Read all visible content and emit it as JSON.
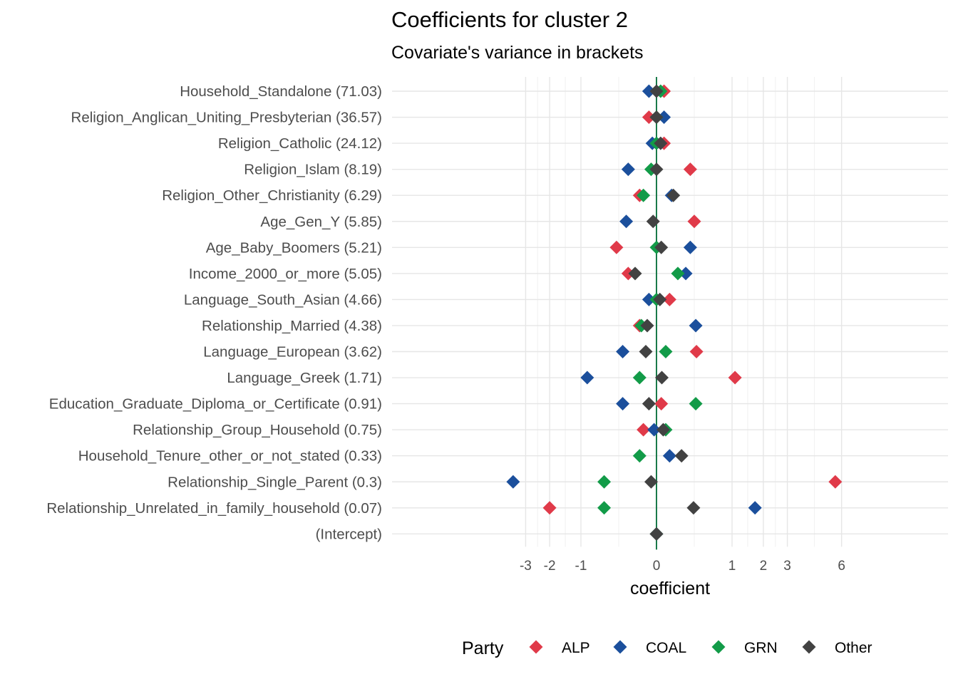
{
  "chart_data": {
    "type": "scatter",
    "title": "Coefficients for cluster 2",
    "subtitle": "Covariate's variance in brackets",
    "xlabel": "coefficient",
    "ylabel": "",
    "x_scale": "signed-sqrt",
    "xlim": [
      -3.8,
      6.1
    ],
    "x_ticks": [
      -3,
      -2,
      -1,
      0,
      1,
      2,
      3,
      6
    ],
    "x_tick_labels": [
      "-3",
      "-2",
      "-1",
      "0",
      "1",
      "2",
      "3",
      "6"
    ],
    "reference_line": {
      "x": 0,
      "color": "#1a7a4a"
    },
    "grid": true,
    "legend": {
      "title": "Party",
      "position": "bottom"
    },
    "categories": [
      "Household_Standalone (71.03)",
      "Religion_Anglican_Uniting_Presbyterian (36.57)",
      "Religion_Catholic (24.12)",
      "Religion_Islam (8.19)",
      "Religion_Other_Christianity (6.29)",
      "Age_Gen_Y (5.85)",
      "Age_Baby_Boomers (5.21)",
      "Income_2000_or_more (5.05)",
      "Language_South_Asian (4.66)",
      "Relationship_Married (4.38)",
      "Language_European (3.62)",
      "Language_Greek (1.71)",
      "Education_Graduate_Diploma_or_Certificate (0.91)",
      "Relationship_Group_Household (0.75)",
      "Household_Tenure_other_or_not_stated (0.33)",
      "Relationship_Single_Parent (0.3)",
      "Relationship_Unrelated_in_family_household (0.07)",
      "(Intercept)"
    ],
    "series": [
      {
        "name": "ALP",
        "color": "#e03a49",
        "values": [
          0.01,
          -0.01,
          0.01,
          0.2,
          -0.05,
          0.25,
          -0.28,
          -0.14,
          0.03,
          -0.05,
          0.28,
          1.08,
          0.004,
          -0.03,
          null,
          5.6,
          -2.0,
          0
        ]
      },
      {
        "name": "COAL",
        "color": "#1b4f9c",
        "values": [
          -0.01,
          0.01,
          -0.003,
          -0.14,
          0.04,
          -0.16,
          0.2,
          0.15,
          -0.01,
          0.27,
          -0.2,
          -0.84,
          -0.2,
          -0.001,
          0.03,
          -3.6,
          1.7,
          0
        ]
      },
      {
        "name": "GRN",
        "color": "#129b48",
        "values": [
          0.003,
          0.0,
          0.0,
          -0.005,
          -0.03,
          null,
          0.0,
          0.08,
          0.0,
          -0.04,
          0.015,
          -0.05,
          0.27,
          0.015,
          -0.05,
          -0.48,
          -0.48,
          0
        ]
      },
      {
        "name": "Other",
        "color": "#424242",
        "values": [
          0.0,
          0.0,
          0.003,
          0.0,
          0.05,
          -0.002,
          0.004,
          -0.08,
          0.002,
          -0.015,
          -0.02,
          0.005,
          -0.01,
          0.008,
          0.11,
          -0.005,
          0.24,
          0
        ]
      }
    ]
  }
}
